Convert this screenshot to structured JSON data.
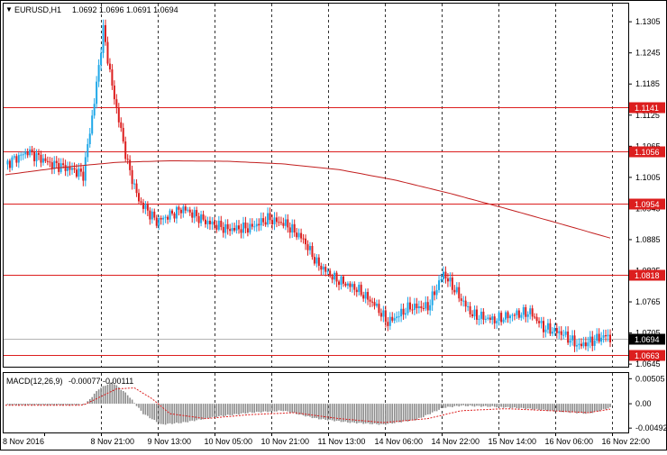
{
  "header": {
    "symbol": "EURUSD,H1",
    "ohlc": "1.0692 1.0696 1.0691 1.0694"
  },
  "colors": {
    "bull": "#1ea7e8",
    "bear": "#dc1e1e",
    "level": "#dc1e1e",
    "ma": "#c21e1e",
    "grid": "#000000",
    "price_badge": "#000000",
    "histogram": "#8c8c8c",
    "signal": "#dc1e1e"
  },
  "chart_data": [
    {
      "type": "candlestick",
      "title": "EURUSD,H1",
      "ylim": [
        1.064,
        1.134
      ],
      "y_ticks": [
        "1.1305",
        "1.1245",
        "1.1185",
        "1.1125",
        "1.1065",
        "1.1005",
        "1.0945",
        "1.0885",
        "1.0825",
        "1.0765",
        "1.0705",
        "1.0645"
      ],
      "x_ticks": [
        "8 Nov 2016",
        "8 Nov 21:00",
        "9 Nov 13:00",
        "10 Nov 05:00",
        "10 Nov 21:00",
        "11 Nov 13:00",
        "14 Nov 06:00",
        "14 Nov 22:00",
        "15 Nov 14:00",
        "16 Nov 06:00",
        "16 Nov 22:00"
      ],
      "levels": [
        "1.1141",
        "1.1056",
        "1.0954",
        "1.0818",
        "1.0663"
      ],
      "current_price": "1.0694",
      "moving_average": [
        [
          0,
          1.101
        ],
        [
          25,
          1.1024
        ],
        [
          50,
          1.1034
        ],
        [
          75,
          1.1037
        ],
        [
          100,
          1.1036
        ],
        [
          125,
          1.1031
        ],
        [
          150,
          1.102
        ],
        [
          175,
          1.1
        ],
        [
          200,
          1.0974
        ],
        [
          225,
          1.0945
        ],
        [
          250,
          1.0915
        ],
        [
          272,
          1.0888
        ]
      ],
      "price_path": [
        [
          0,
          1.103
        ],
        [
          10,
          1.1055
        ],
        [
          20,
          1.1032
        ],
        [
          30,
          1.102
        ],
        [
          35,
          1.101
        ],
        [
          40,
          1.115
        ],
        [
          44,
          1.129
        ],
        [
          48,
          1.118
        ],
        [
          55,
          1.103
        ],
        [
          60,
          1.096
        ],
        [
          68,
          1.092
        ],
        [
          80,
          1.0945
        ],
        [
          90,
          1.092
        ],
        [
          100,
          1.0905
        ],
        [
          110,
          1.0908
        ],
        [
          118,
          1.0925
        ],
        [
          126,
          1.0915
        ],
        [
          134,
          1.0885
        ],
        [
          140,
          1.084
        ],
        [
          148,
          1.081
        ],
        [
          158,
          1.079
        ],
        [
          166,
          1.076
        ],
        [
          172,
          1.0725
        ],
        [
          182,
          1.0755
        ],
        [
          190,
          1.0755
        ],
        [
          197,
          1.082
        ],
        [
          205,
          1.077
        ],
        [
          210,
          1.074
        ],
        [
          220,
          1.073
        ],
        [
          228,
          1.074
        ],
        [
          236,
          1.0745
        ],
        [
          242,
          1.0715
        ],
        [
          250,
          1.0705
        ],
        [
          258,
          1.068
        ],
        [
          264,
          1.069
        ],
        [
          270,
          1.07
        ],
        [
          272,
          1.0694
        ]
      ]
    },
    {
      "type": "macd",
      "title": "MACD(12,26,9)",
      "values_label": "-0.00077 -0.00111",
      "ylim": [
        -0.0058,
        0.0062
      ],
      "y_ticks": [
        "0.00505",
        "0.00",
        "-0.00492"
      ],
      "histogram_path": [
        [
          0,
          -0.0003
        ],
        [
          30,
          -0.0003
        ],
        [
          36,
          -0.0001
        ],
        [
          42,
          0.003
        ],
        [
          48,
          0.0044
        ],
        [
          55,
          0.0018
        ],
        [
          62,
          -0.002
        ],
        [
          70,
          -0.0042
        ],
        [
          80,
          -0.0038
        ],
        [
          95,
          -0.0026
        ],
        [
          110,
          -0.0018
        ],
        [
          125,
          -0.0014
        ],
        [
          140,
          -0.003
        ],
        [
          155,
          -0.0038
        ],
        [
          170,
          -0.0042
        ],
        [
          185,
          -0.0032
        ],
        [
          197,
          -0.0008
        ],
        [
          205,
          -0.0004
        ],
        [
          220,
          -0.0006
        ],
        [
          235,
          -0.001
        ],
        [
          250,
          -0.0016
        ],
        [
          262,
          -0.002
        ],
        [
          272,
          -0.0008
        ]
      ],
      "signal_path": [
        [
          0,
          -0.0003
        ],
        [
          35,
          -0.0003
        ],
        [
          50,
          0.003
        ],
        [
          58,
          0.0032
        ],
        [
          66,
          0.001
        ],
        [
          74,
          -0.002
        ],
        [
          90,
          -0.003
        ],
        [
          110,
          -0.0022
        ],
        [
          130,
          -0.0018
        ],
        [
          150,
          -0.003
        ],
        [
          170,
          -0.0038
        ],
        [
          190,
          -0.003
        ],
        [
          205,
          -0.0014
        ],
        [
          225,
          -0.001
        ],
        [
          245,
          -0.0014
        ],
        [
          262,
          -0.0018
        ],
        [
          272,
          -0.0011
        ]
      ]
    }
  ]
}
